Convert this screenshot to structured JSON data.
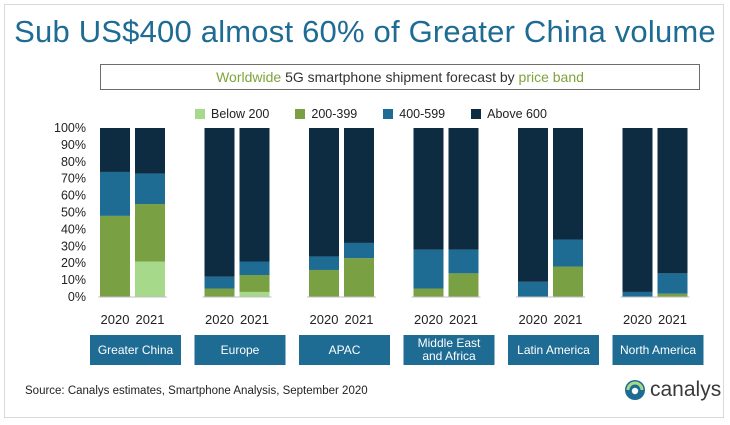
{
  "headline": "Sub US$400 almost 60% of Greater China volume",
  "subtitle": {
    "part1": "Worldwide",
    "part2": " 5G smartphone shipment forecast by ",
    "part3": "price band"
  },
  "source": "Source: Canalys estimates, Smartphone Analysis, September 2020",
  "logo_text": "canalys",
  "colors": {
    "Below 200": "#a6d98a",
    "200-399": "#79a043",
    "400-599": "#1e6b93",
    "Above 600": "#0d2b41",
    "region_box": "#1e6b93",
    "headline": "#1e6b93"
  },
  "chart_data": {
    "type": "bar",
    "stacked": true,
    "title": "Worldwide 5G smartphone shipment forecast by price band",
    "ylim": [
      0,
      100
    ],
    "y_ticks": [
      "0%",
      "10%",
      "20%",
      "30%",
      "40%",
      "50%",
      "60%",
      "70%",
      "80%",
      "90%",
      "100%"
    ],
    "legend": [
      "Below 200",
      "200-399",
      "400-599",
      "Above 600"
    ],
    "legend_position": "top",
    "grid": false,
    "groups": [
      {
        "region": "Greater China",
        "bars": [
          {
            "year": "2020",
            "values": [
              0,
              48,
              26,
              26
            ]
          },
          {
            "year": "2021",
            "values": [
              21,
              34,
              18,
              27
            ]
          }
        ]
      },
      {
        "region": "Europe",
        "bars": [
          {
            "year": "2020",
            "values": [
              0,
              5,
              7,
              88
            ]
          },
          {
            "year": "2021",
            "values": [
              3,
              10,
              8,
              79
            ]
          }
        ]
      },
      {
        "region": "APAC",
        "bars": [
          {
            "year": "2020",
            "values": [
              0,
              16,
              8,
              76
            ]
          },
          {
            "year": "2021",
            "values": [
              0,
              23,
              9,
              68
            ]
          }
        ]
      },
      {
        "region": "Middle East and Africa",
        "region_lines": [
          "Middle East",
          "and Africa"
        ],
        "bars": [
          {
            "year": "2020",
            "values": [
              0,
              5,
              23,
              72
            ]
          },
          {
            "year": "2021",
            "values": [
              0,
              14,
              14,
              72
            ]
          }
        ]
      },
      {
        "region": "Latin America",
        "bars": [
          {
            "year": "2020",
            "values": [
              0,
              0,
              9,
              91
            ]
          },
          {
            "year": "2021",
            "values": [
              0,
              18,
              16,
              66
            ]
          }
        ]
      },
      {
        "region": "North America",
        "bars": [
          {
            "year": "2020",
            "values": [
              0,
              0,
              3,
              97
            ]
          },
          {
            "year": "2021",
            "values": [
              0,
              2,
              12,
              86
            ]
          }
        ]
      }
    ]
  }
}
